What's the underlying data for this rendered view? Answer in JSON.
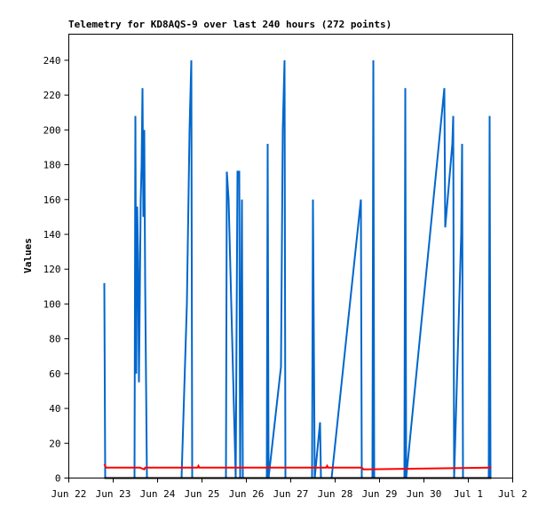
{
  "chart_data": {
    "type": "line",
    "title": "Telemetry for KD8AQS-9 over last 240 hours (272 points)",
    "y_label": "Values",
    "xlim": [
      0,
      10
    ],
    "xticks": [
      {
        "value": 0,
        "label": "Jun 22"
      },
      {
        "value": 1,
        "label": "Jun 23"
      },
      {
        "value": 2,
        "label": "Jun 24"
      },
      {
        "value": 3,
        "label": "Jun 25"
      },
      {
        "value": 4,
        "label": "Jun 26"
      },
      {
        "value": 5,
        "label": "Jun 27"
      },
      {
        "value": 6,
        "label": "Jun 28"
      },
      {
        "value": 7,
        "label": "Jun 29"
      },
      {
        "value": 8,
        "label": "Jun 30"
      },
      {
        "value": 9,
        "label": "Jul 1"
      },
      {
        "value": 10,
        "label": "Jul 2"
      }
    ],
    "ylim": [
      0,
      255
    ],
    "yticks": [
      0,
      20,
      40,
      60,
      80,
      100,
      120,
      140,
      160,
      180,
      200,
      220,
      240
    ],
    "grid": false,
    "series": [
      {
        "color": "#0066cc",
        "x": [
          0.8,
          0.82,
          1.48,
          1.5,
          1.52,
          1.54,
          1.56,
          1.58,
          1.62,
          1.64,
          1.66,
          1.68,
          1.7,
          1.72,
          1.76,
          2.54,
          2.66,
          2.72,
          2.76,
          2.78,
          3.54,
          3.56,
          3.6,
          3.64,
          3.72,
          3.76,
          3.8,
          3.84,
          3.86,
          3.9,
          3.92,
          4.46,
          4.48,
          4.5,
          4.78,
          4.82,
          4.86,
          4.88,
          5.48,
          5.5,
          5.52,
          5.54,
          5.66,
          5.68,
          5.92,
          6.58,
          6.6,
          6.84,
          6.86,
          6.88,
          7.56,
          7.58,
          7.6,
          8.46,
          8.48,
          8.64,
          8.66,
          8.68,
          8.84,
          8.86,
          8.88,
          9.46,
          9.48,
          9.5
        ],
        "values": [
          112,
          0,
          0,
          208,
          60,
          156,
          128,
          55,
          160,
          180,
          224,
          150,
          200,
          112,
          0,
          0,
          100,
          200,
          240,
          0,
          0,
          176,
          160,
          120,
          40,
          0,
          176,
          176,
          0,
          160,
          0,
          0,
          192,
          0,
          64,
          200,
          240,
          0,
          0,
          160,
          80,
          0,
          32,
          0,
          0,
          160,
          0,
          0,
          240,
          0,
          0,
          224,
          0,
          224,
          144,
          192,
          208,
          0,
          140,
          192,
          0,
          0,
          208,
          0
        ]
      },
      {
        "color": "#ff0000",
        "x": [
          0.8,
          0.84,
          1.6,
          1.7,
          1.72,
          2.9,
          2.92,
          2.94,
          5.8,
          5.82,
          5.84,
          6.6,
          6.64,
          9.52
        ],
        "values": [
          8,
          6,
          6,
          5,
          6,
          6,
          7,
          6,
          6,
          7,
          6,
          6,
          5,
          6
        ]
      },
      {
        "color": "#000000",
        "x": [
          0.8,
          9.52
        ],
        "values": [
          0,
          0
        ]
      }
    ]
  }
}
